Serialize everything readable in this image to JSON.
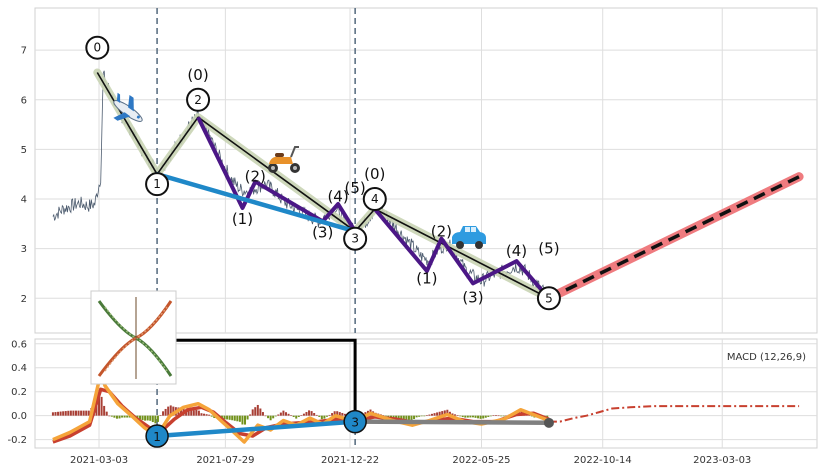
{
  "chart_data": [
    {
      "type": "line",
      "panel": "price",
      "x_ticks": [
        "2021-03-03",
        "2021-07-29",
        "2021-12-22",
        "2022-05-25",
        "2022-10-14",
        "2023-03-03"
      ],
      "y_ticks": [
        2,
        3,
        4,
        5,
        6,
        7
      ],
      "ylim": [
        1.3,
        7.85
      ],
      "xlim": [
        "2020-12-18",
        "2023-06-22"
      ],
      "grid": true,
      "colors": {
        "price": "#4c5b6e",
        "wave_main": "#111111",
        "wave_halo": "#c9d4b4",
        "subwave": "#4b1786",
        "trend": "#1f88c8",
        "forecast_band": "#ef7b7f",
        "forecast_line": "#111111",
        "vline": "#5d7184"
      },
      "vlines": [
        "2021-05-10",
        "2021-12-28"
      ],
      "price_series": [
        [
          "2021-01-08",
          3.65
        ],
        [
          "2021-01-20",
          3.8
        ],
        [
          "2021-01-28",
          3.85
        ],
        [
          "2021-02-08",
          3.92
        ],
        [
          "2021-02-18",
          3.86
        ],
        [
          "2021-02-26",
          3.9
        ],
        [
          "2021-03-05",
          4.45
        ],
        [
          "2021-03-08",
          6.5
        ],
        [
          "2021-03-15",
          6.2
        ],
        [
          "2021-03-25",
          5.8
        ],
        [
          "2021-04-05",
          5.5
        ],
        [
          "2021-04-15",
          5.25
        ],
        [
          "2021-04-25",
          4.9
        ],
        [
          "2021-05-05",
          4.7
        ],
        [
          "2021-05-10",
          4.5
        ],
        [
          "2021-05-20",
          4.75
        ],
        [
          "2021-06-01",
          5.05
        ],
        [
          "2021-06-10",
          5.3
        ],
        [
          "2021-06-20",
          5.55
        ],
        [
          "2021-06-27",
          5.65
        ],
        [
          "2021-07-05",
          5.45
        ],
        [
          "2021-07-15",
          5.1
        ],
        [
          "2021-07-25",
          4.75
        ],
        [
          "2021-08-05",
          4.4
        ],
        [
          "2021-08-15",
          4.2
        ],
        [
          "2021-08-25",
          4.15
        ],
        [
          "2021-09-05",
          4.25
        ],
        [
          "2021-09-15",
          4.3
        ],
        [
          "2021-09-25",
          4.15
        ],
        [
          "2021-10-05",
          3.95
        ],
        [
          "2021-10-15",
          3.85
        ],
        [
          "2021-10-25",
          3.75
        ],
        [
          "2021-11-05",
          3.65
        ],
        [
          "2021-11-15",
          3.55
        ],
        [
          "2021-11-25",
          3.7
        ],
        [
          "2021-12-05",
          3.8
        ],
        [
          "2021-12-15",
          3.55
        ],
        [
          "2021-12-28",
          3.35
        ],
        [
          "2022-01-10",
          3.55
        ],
        [
          "2022-01-20",
          3.8
        ],
        [
          "2022-01-30",
          3.75
        ],
        [
          "2022-02-10",
          3.5
        ],
        [
          "2022-02-20",
          3.3
        ],
        [
          "2022-03-05",
          3.05
        ],
        [
          "2022-03-15",
          2.85
        ],
        [
          "2022-03-25",
          2.75
        ],
        [
          "2022-04-05",
          3.0
        ],
        [
          "2022-04-15",
          3.1
        ],
        [
          "2022-04-25",
          2.9
        ],
        [
          "2022-05-05",
          2.6
        ],
        [
          "2022-05-15",
          2.45
        ],
        [
          "2022-05-25",
          2.35
        ],
        [
          "2022-06-05",
          2.45
        ],
        [
          "2022-06-20",
          2.55
        ],
        [
          "2022-07-05",
          2.65
        ],
        [
          "2022-07-15",
          2.55
        ],
        [
          "2022-07-25",
          2.35
        ],
        [
          "2022-08-05",
          2.15
        ],
        [
          "2022-08-12",
          2.0
        ]
      ],
      "waves_primary": [
        {
          "label": "0",
          "date": "2021-03-01",
          "value": 6.55,
          "marker_value": 7.05
        },
        {
          "label": "1",
          "date": "2021-05-10",
          "value": 4.5,
          "marker_value": 4.3
        },
        {
          "label": "2",
          "date": "2021-06-27",
          "value": 5.65,
          "marker_value": 6.0
        },
        {
          "label": "3",
          "date": "2021-12-28",
          "value": 3.35,
          "marker_value": 3.2
        },
        {
          "label": "4",
          "date": "2022-01-20",
          "value": 3.8,
          "marker_value": 4.0
        },
        {
          "label": "5",
          "date": "2022-08-12",
          "value": 2.0,
          "marker_value": 2.0
        }
      ],
      "waves_secondary": [
        {
          "label": "(0)",
          "date": "2021-06-27",
          "value": 5.65,
          "label_value": 6.5
        },
        {
          "label": "(1)",
          "date": "2021-08-18",
          "value": 3.82,
          "label_value": 3.6
        },
        {
          "label": "(2)",
          "date": "2021-09-02",
          "value": 4.35,
          "label_value": 4.45
        },
        {
          "label": "(3)",
          "date": "2021-11-20",
          "value": 3.55,
          "label_value": 3.33
        },
        {
          "label": "(4)",
          "date": "2021-12-08",
          "value": 3.9,
          "label_value": 4.05
        },
        {
          "label": "(5)",
          "date": "2021-12-28",
          "value": 3.35,
          "label_value": 4.22
        },
        {
          "label": "(0)",
          "date": "2022-01-20",
          "value": 3.8,
          "label_value": 4.5
        },
        {
          "label": "(1)",
          "date": "2022-03-22",
          "value": 2.55,
          "label_value": 2.4
        },
        {
          "label": "(2)",
          "date": "2022-04-08",
          "value": 3.2,
          "label_value": 3.35
        },
        {
          "label": "(3)",
          "date": "2022-05-15",
          "value": 2.3,
          "label_value": 2.02
        },
        {
          "label": "(4)",
          "date": "2022-07-05",
          "value": 2.75,
          "label_value": 2.95
        },
        {
          "label": "(5)",
          "date": "2022-08-12",
          "value": 2.0,
          "label_value": 3.0
        }
      ],
      "trend_line": [
        [
          "2021-05-10",
          4.5
        ],
        [
          "2021-12-28",
          3.35
        ]
      ],
      "forecast": [
        [
          "2022-08-12",
          2.0
        ],
        [
          "2023-06-01",
          4.45
        ]
      ]
    },
    {
      "type": "line",
      "panel": "macd",
      "legend": "MACD (12,26,9)",
      "x_ticks": [
        "2021-03-03",
        "2021-07-29",
        "2021-12-22",
        "2022-05-25",
        "2022-10-14",
        "2023-03-03"
      ],
      "y_ticks": [
        -0.2,
        0.0,
        0.2,
        0.4,
        0.6
      ],
      "ylim": [
        -0.27,
        0.64
      ],
      "grid": true,
      "colors": {
        "macd": "#f5a43a",
        "signal": "#c8402f",
        "hist_pos": "#a83f35",
        "hist_neg": "#72921c",
        "trend": "#1f88c8",
        "divergence": "#808080",
        "connector": "#000000"
      },
      "macd_series": [
        [
          "2021-01-08",
          -0.2
        ],
        [
          "2021-01-28",
          -0.14
        ],
        [
          "2021-02-20",
          -0.05
        ],
        [
          "2021-03-05",
          0.35
        ],
        [
          "2021-03-10",
          0.25
        ],
        [
          "2021-03-25",
          0.1
        ],
        [
          "2021-04-10",
          0.0
        ],
        [
          "2021-04-25",
          -0.1
        ],
        [
          "2021-05-10",
          -0.17
        ],
        [
          "2021-05-25",
          0.0
        ],
        [
          "2021-06-10",
          0.07
        ],
        [
          "2021-06-27",
          0.1
        ],
        [
          "2021-07-10",
          0.05
        ],
        [
          "2021-07-25",
          -0.05
        ],
        [
          "2021-08-05",
          -0.12
        ],
        [
          "2021-08-20",
          -0.22
        ],
        [
          "2021-09-05",
          -0.08
        ],
        [
          "2021-09-20",
          -0.12
        ],
        [
          "2021-10-05",
          -0.04
        ],
        [
          "2021-10-20",
          -0.08
        ],
        [
          "2021-11-05",
          -0.02
        ],
        [
          "2021-11-20",
          -0.07
        ],
        [
          "2021-12-05",
          0.0
        ],
        [
          "2021-12-28",
          -0.05
        ],
        [
          "2022-01-15",
          0.02
        ],
        [
          "2022-02-10",
          -0.04
        ],
        [
          "2022-03-05",
          -0.08
        ],
        [
          "2022-03-25",
          -0.04
        ],
        [
          "2022-04-15",
          0.01
        ],
        [
          "2022-05-05",
          -0.05
        ],
        [
          "2022-05-25",
          -0.07
        ],
        [
          "2022-06-20",
          -0.03
        ],
        [
          "2022-07-10",
          0.05
        ],
        [
          "2022-08-12",
          -0.04
        ]
      ],
      "signal_series": [
        [
          "2021-01-08",
          -0.22
        ],
        [
          "2021-01-28",
          -0.17
        ],
        [
          "2021-02-20",
          -0.08
        ],
        [
          "2021-03-05",
          0.22
        ],
        [
          "2021-03-15",
          0.2
        ],
        [
          "2021-03-30",
          0.08
        ],
        [
          "2021-04-15",
          -0.02
        ],
        [
          "2021-05-01",
          -0.1
        ],
        [
          "2021-05-15",
          -0.13
        ],
        [
          "2021-05-30",
          -0.03
        ],
        [
          "2021-06-15",
          0.05
        ],
        [
          "2021-07-01",
          0.07
        ],
        [
          "2021-07-15",
          0.03
        ],
        [
          "2021-07-30",
          -0.06
        ],
        [
          "2021-08-15",
          -0.15
        ],
        [
          "2021-08-30",
          -0.17
        ],
        [
          "2021-09-15",
          -0.1
        ],
        [
          "2021-10-05",
          -0.07
        ],
        [
          "2021-10-25",
          -0.06
        ],
        [
          "2021-11-15",
          -0.05
        ],
        [
          "2021-12-05",
          -0.03
        ],
        [
          "2021-12-28",
          -0.04
        ],
        [
          "2022-01-20",
          -0.01
        ],
        [
          "2022-02-15",
          -0.03
        ],
        [
          "2022-03-10",
          -0.06
        ],
        [
          "2022-04-01",
          -0.04
        ],
        [
          "2022-04-20",
          -0.02
        ],
        [
          "2022-05-15",
          -0.05
        ],
        [
          "2022-06-10",
          -0.05
        ],
        [
          "2022-07-05",
          0.01
        ],
        [
          "2022-07-25",
          0.02
        ],
        [
          "2022-08-12",
          -0.03
        ]
      ],
      "macd_forecast": [
        [
          "2022-08-12",
          -0.05
        ],
        [
          "2022-08-25",
          -0.05
        ],
        [
          "2022-09-10",
          -0.02
        ],
        [
          "2022-09-25",
          0.0
        ],
        [
          "2022-10-10",
          0.03
        ],
        [
          "2022-10-25",
          0.06
        ],
        [
          "2022-11-15",
          0.07
        ],
        [
          "2022-12-15",
          0.08
        ],
        [
          "2023-02-01",
          0.08
        ],
        [
          "2023-04-01",
          0.08
        ],
        [
          "2023-06-01",
          0.08
        ]
      ],
      "trend_line": [
        [
          "2021-05-10",
          -0.17
        ],
        [
          "2021-12-28",
          -0.05
        ]
      ],
      "divergence_line": [
        [
          "2021-12-28",
          -0.05
        ],
        [
          "2022-08-12",
          -0.06
        ]
      ],
      "markers": [
        {
          "label": "1",
          "date": "2021-05-10",
          "value": -0.17
        },
        {
          "label": "3",
          "date": "2021-12-28",
          "value": -0.05
        }
      ],
      "connector_level": 0.63
    }
  ],
  "macd_legend": "MACD (12,26,9)",
  "icons": [
    "airplane-icon",
    "scooter-icon",
    "car-icon",
    "swing-chart-thumbnail"
  ]
}
